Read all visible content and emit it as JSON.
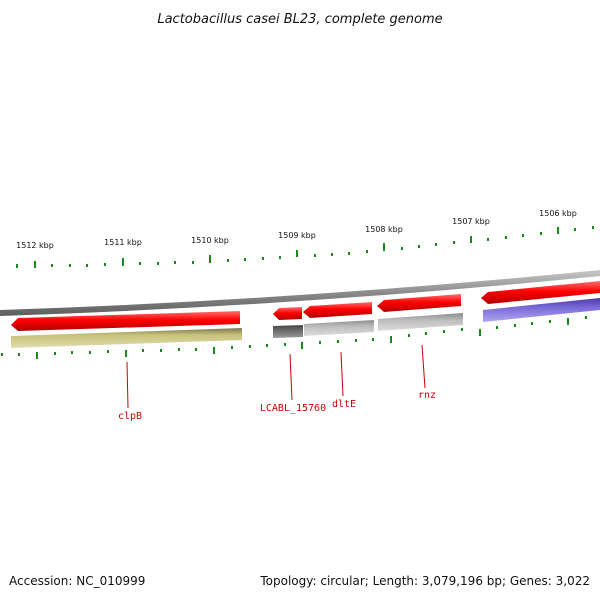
{
  "title": "Lactobacillus casei BL23, complete genome",
  "ticks": [
    "1512 kbp",
    "1511 kbp",
    "1510 kbp",
    "1509 kbp",
    "1508 kbp",
    "1507 kbp",
    "1506 kbp"
  ],
  "genes": [
    "clpB",
    "LCABL_15760",
    "dltE",
    "rnz"
  ],
  "footer": {
    "accession": "Accession: NC_010999",
    "summary": "Topology: circular; Length: 3,079,196 bp; Genes: 3,022"
  },
  "colors": {
    "cds": "#ff0000",
    "backbone": "#8a8a8a",
    "tick": "#1a8a1a",
    "label_line": "#cc0000",
    "feature_olive": "#c8c27a",
    "feature_dark": "#6a6a6a",
    "feature_gray": "#bdbdbd",
    "feature_purple": "#7a6ad8"
  }
}
